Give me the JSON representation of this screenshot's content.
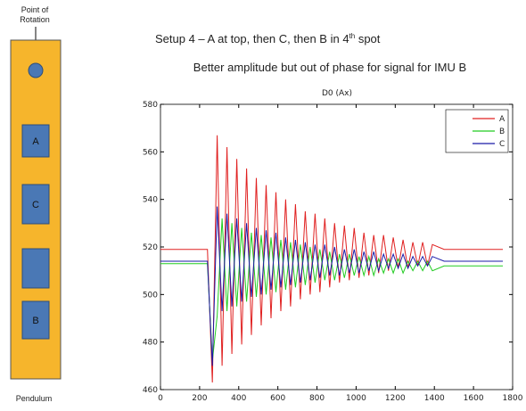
{
  "slide": {
    "title_main": "Setup 4 – A at top, then C, then B in 4",
    "title_sup": "th",
    "title_end": " spot",
    "subtitle": "Better amplitude but out of phase for signal for IMU B",
    "pivot_label": [
      "Point of",
      "Rotation"
    ],
    "pendulum_label": "Pendulum",
    "slots": [
      "A",
      "C",
      "B"
    ]
  },
  "chart_data": {
    "type": "line",
    "title": "D0 (Ax)",
    "x": [
      0,
      50,
      100,
      150,
      200,
      240,
      265,
      290,
      315,
      340,
      365,
      390,
      415,
      440,
      465,
      490,
      515,
      540,
      565,
      590,
      615,
      640,
      665,
      690,
      715,
      740,
      765,
      790,
      815,
      840,
      865,
      890,
      915,
      940,
      965,
      990,
      1015,
      1040,
      1065,
      1090,
      1115,
      1140,
      1165,
      1190,
      1215,
      1240,
      1265,
      1290,
      1315,
      1340,
      1365,
      1390,
      1450,
      1500,
      1550,
      1600,
      1650,
      1700,
      1750
    ],
    "series": [
      {
        "name": "A",
        "color": "#e02020",
        "values": [
          519,
          519,
          519,
          519,
          519,
          519,
          463,
          567,
          470,
          562,
          475,
          557,
          479,
          553,
          483,
          549,
          487,
          546,
          490,
          543,
          493,
          540,
          495,
          538,
          498,
          535,
          500,
          534,
          501,
          532,
          503,
          530,
          505,
          529,
          506,
          528,
          507,
          526,
          508,
          525,
          509,
          525,
          510,
          524,
          511,
          523,
          511,
          522,
          512,
          522,
          512,
          521,
          519,
          519,
          519,
          519,
          519,
          519,
          519
        ]
      },
      {
        "name": "B",
        "color": "#22cc22",
        "values": [
          513,
          513,
          513,
          513,
          513,
          513,
          472,
          491,
          532,
          493,
          530,
          495,
          528,
          497,
          526,
          499,
          525,
          500,
          524,
          501,
          523,
          502,
          522,
          503,
          521,
          504,
          520,
          505,
          519,
          506,
          518,
          506,
          517,
          507,
          517,
          508,
          516,
          508,
          516,
          508,
          515,
          509,
          515,
          509,
          515,
          509,
          514,
          510,
          514,
          510,
          514,
          510,
          512,
          512,
          512,
          512,
          512,
          512,
          512
        ]
      },
      {
        "name": "C",
        "color": "#1a1aa8",
        "values": [
          514,
          514,
          514,
          514,
          514,
          514,
          470,
          537,
          493,
          534,
          495,
          532,
          497,
          530,
          499,
          528,
          500,
          527,
          502,
          526,
          503,
          524,
          504,
          523,
          505,
          522,
          506,
          521,
          507,
          521,
          508,
          520,
          508,
          519,
          509,
          519,
          509,
          518,
          510,
          518,
          510,
          517,
          511,
          517,
          511,
          517,
          511,
          516,
          512,
          516,
          512,
          516,
          514,
          514,
          514,
          514,
          514,
          514,
          514
        ]
      }
    ],
    "xlim": [
      0,
      1800
    ],
    "xticks": [
      0,
      200,
      400,
      600,
      800,
      1000,
      1200,
      1400,
      1600,
      1800
    ],
    "ylim": [
      460,
      580
    ],
    "yticks": [
      460,
      480,
      500,
      520,
      540,
      560,
      580
    ],
    "legend": "upper right"
  }
}
